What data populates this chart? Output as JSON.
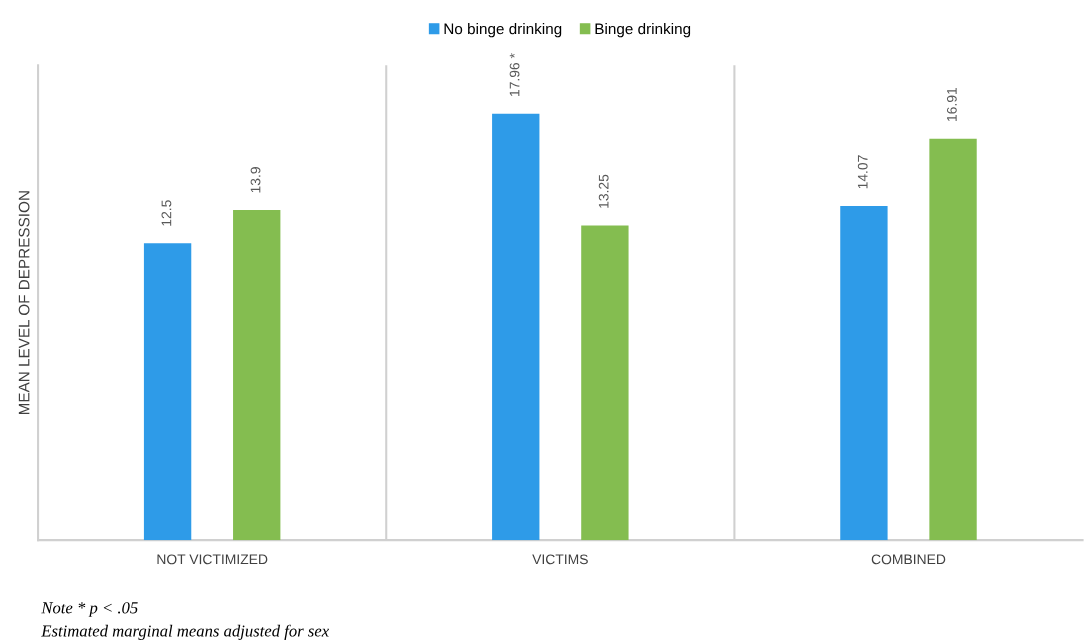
{
  "chart_data": {
    "type": "bar",
    "categories": [
      "NOT VICTIMIZED",
      "VICTIMS",
      "COMBINED"
    ],
    "series": [
      {
        "name": "No binge drinking",
        "color": "#2e9be8",
        "values": [
          12.5,
          17.96,
          14.07
        ],
        "value_labels": [
          "12.5",
          "17.96 *",
          "14.07"
        ]
      },
      {
        "name": "Binge drinking",
        "color": "#84bd50",
        "values": [
          13.9,
          13.25,
          16.91
        ],
        "value_labels": [
          "13.9",
          "13.25",
          "16.91"
        ]
      }
    ],
    "ylabel": "MEAN LEVEL OF DEPRESSION",
    "ylim": [
      0,
      20
    ],
    "tick_labels": "x",
    "grid": "x",
    "legend": "top",
    "annotations": [
      "Note * p < .05",
      "Estimated marginal means adjusted for sex"
    ]
  }
}
